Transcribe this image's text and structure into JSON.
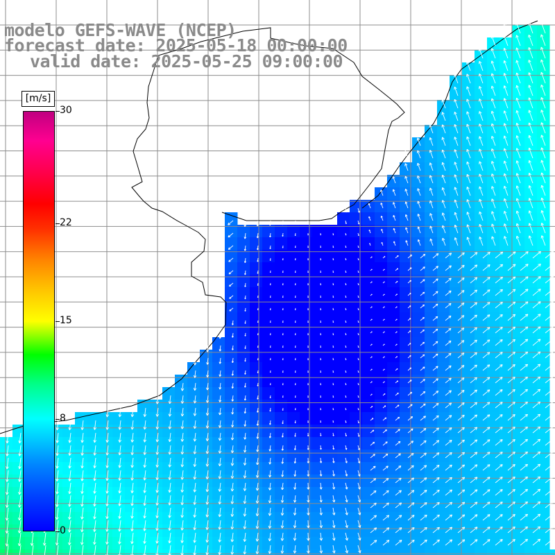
{
  "header": {
    "line1": "modelo GEFS-WAVE (NCEP)",
    "line2": "forecast date: 2025-05-18 00:00:00",
    "line3": "valid date: 2025-05-25 09:00:00"
  },
  "colorbar": {
    "units": "[m/s]",
    "min": 0,
    "max": 30,
    "ticks": [
      {
        "value": 30,
        "label": "30"
      },
      {
        "value": 22,
        "label": "22"
      },
      {
        "value": 15,
        "label": "15"
      },
      {
        "value": 8,
        "label": "8"
      },
      {
        "value": 0,
        "label": "0"
      }
    ],
    "colors": [
      "#0000ff",
      "#0088ff",
      "#00ffff",
      "#00ff00",
      "#ffff00",
      "#ff8000",
      "#ff0000",
      "#c00080"
    ]
  },
  "map": {
    "variable": "wind speed",
    "field_range_m_s": [
      0,
      12
    ],
    "land_color": "#ffffff",
    "grid_color": "#8c8c8c",
    "coastline_color": "#000000",
    "arrow_color": "#ffffff"
  }
}
